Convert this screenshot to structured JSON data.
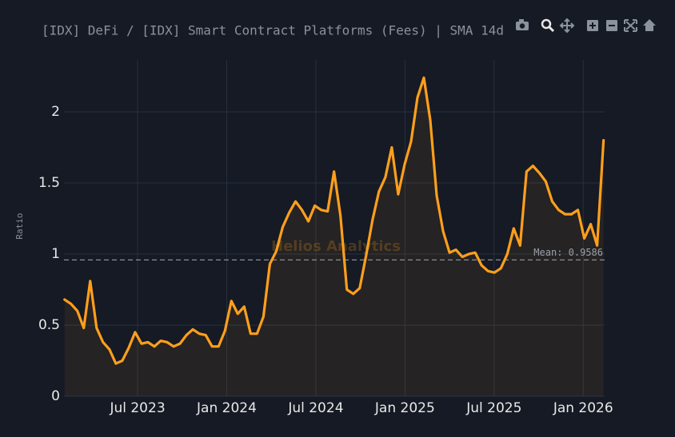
{
  "chart_data": {
    "type": "line",
    "title": "[IDX] DeFi / [IDX] Smart Contract Platforms (Fees) | SMA 14d",
    "y_label": "Ratio",
    "watermark": "Helios Analytics",
    "color": "#ff9f1c",
    "fill": true,
    "grid": true,
    "mean": {
      "value": 0.9586,
      "label": "Mean: 0.9586"
    },
    "xlim": [
      2023.087,
      2026.12
    ],
    "ylim": [
      0,
      2.365
    ],
    "xticks": [
      {
        "value": 2023.5,
        "label": "Jul 2023"
      },
      {
        "value": 2024,
        "label": "Jan 2024"
      },
      {
        "value": 2024.5,
        "label": "Jul 2024"
      },
      {
        "value": 2025,
        "label": "Jan 2025"
      },
      {
        "value": 2025.5,
        "label": "Jul 2025"
      },
      {
        "value": 2026,
        "label": "Jan 2026"
      }
    ],
    "yticks": [
      0,
      0.5,
      1,
      1.5,
      2
    ],
    "x": [
      2023.09,
      2023.126,
      2023.162,
      2023.198,
      2023.234,
      2023.27,
      2023.306,
      2023.342,
      2023.378,
      2023.414,
      2023.45,
      2023.486,
      2023.522,
      2023.558,
      2023.594,
      2023.63,
      2023.666,
      2023.702,
      2023.738,
      2023.774,
      2023.81,
      2023.846,
      2023.882,
      2023.918,
      2023.954,
      2023.99,
      2024.026,
      2024.062,
      2024.098,
      2024.134,
      2024.17,
      2024.206,
      2024.242,
      2024.278,
      2024.314,
      2024.35,
      2024.386,
      2024.422,
      2024.458,
      2024.494,
      2024.53,
      2024.566,
      2024.602,
      2024.638,
      2024.674,
      2024.71,
      2024.746,
      2024.782,
      2024.818,
      2024.854,
      2024.89,
      2024.926,
      2024.962,
      2024.998,
      2025.034,
      2025.07,
      2025.106,
      2025.142,
      2025.178,
      2025.214,
      2025.25,
      2025.286,
      2025.322,
      2025.358,
      2025.394,
      2025.43,
      2025.466,
      2025.502,
      2025.538,
      2025.574,
      2025.61,
      2025.646,
      2025.682,
      2025.718,
      2025.754,
      2025.79,
      2025.826,
      2025.862,
      2025.898,
      2025.934,
      2025.97,
      2026.006,
      2026.042,
      2026.078,
      2026.114
    ],
    "values": [
      0.68,
      0.65,
      0.6,
      0.48,
      0.81,
      0.48,
      0.38,
      0.33,
      0.23,
      0.25,
      0.34,
      0.45,
      0.37,
      0.38,
      0.35,
      0.39,
      0.38,
      0.35,
      0.37,
      0.43,
      0.47,
      0.44,
      0.43,
      0.35,
      0.35,
      0.46,
      0.67,
      0.58,
      0.63,
      0.44,
      0.44,
      0.56,
      0.93,
      1.02,
      1.19,
      1.29,
      1.37,
      1.31,
      1.23,
      1.34,
      1.31,
      1.3,
      1.58,
      1.27,
      0.75,
      0.72,
      0.76,
      0.99,
      1.24,
      1.44,
      1.54,
      1.75,
      1.42,
      1.63,
      1.79,
      2.1,
      2.24,
      1.94,
      1.41,
      1.16,
      1.01,
      1.03,
      0.98,
      1.0,
      1.01,
      0.92,
      0.88,
      0.87,
      0.9,
      1.0,
      1.18,
      1.06,
      1.58,
      1.62,
      1.57,
      1.51,
      1.37,
      1.31,
      1.28,
      1.28,
      1.31,
      1.11,
      1.21,
      1.06,
      1.8
    ]
  }
}
